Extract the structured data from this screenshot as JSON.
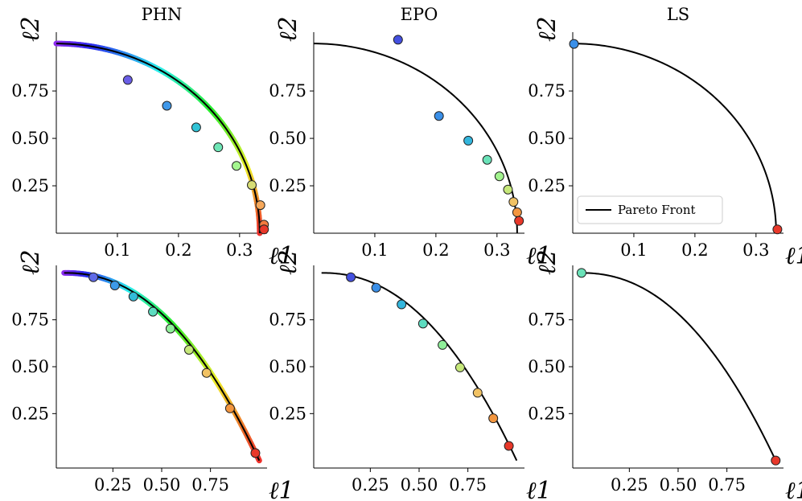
{
  "chart_data": [
    {
      "type": "line",
      "title": "PHN",
      "xlabel": "ℓ1",
      "ylabel": "ℓ2",
      "xticks": [
        "0.1",
        "0.2",
        "0.3"
      ],
      "yticks": [
        "0.25",
        "0.50",
        "0.75"
      ],
      "xlim": [
        0,
        0.345
      ],
      "ylim": [
        0,
        1.06
      ],
      "pareto_front": {
        "shape": "circle",
        "radius": 0.333
      },
      "rainbow_band": true,
      "points": [
        {
          "x": 0.117,
          "y": 0.808,
          "color": "#6a5ee6"
        },
        {
          "x": 0.181,
          "y": 0.672,
          "color": "#3f98ea"
        },
        {
          "x": 0.229,
          "y": 0.558,
          "color": "#30c3d6"
        },
        {
          "x": 0.265,
          "y": 0.453,
          "color": "#6fe6b6"
        },
        {
          "x": 0.295,
          "y": 0.355,
          "color": "#a4f68f"
        },
        {
          "x": 0.32,
          "y": 0.254,
          "color": "#d7dd75"
        },
        {
          "x": 0.334,
          "y": 0.148,
          "color": "#f6a85a"
        },
        {
          "x": 0.34,
          "y": 0.045,
          "color": "#f47b3f"
        },
        {
          "x": 0.34,
          "y": 0.02,
          "color": "#e8382a"
        }
      ]
    },
    {
      "type": "line",
      "title": "EPO",
      "xlabel": "ℓ1",
      "ylabel": "ℓ2",
      "xticks": [
        "0.1",
        "0.2",
        "0.3"
      ],
      "yticks": [
        "0.25",
        "0.50",
        "0.75"
      ],
      "xlim": [
        0,
        0.345
      ],
      "ylim": [
        0,
        1.06
      ],
      "pareto_front": {
        "shape": "circle",
        "radius": 0.333
      },
      "rainbow_band": false,
      "points": [
        {
          "x": 0.138,
          "y": 1.02,
          "color": "#4450e0"
        },
        {
          "x": 0.205,
          "y": 0.618,
          "color": "#3a8fe8"
        },
        {
          "x": 0.253,
          "y": 0.488,
          "color": "#33b6dd"
        },
        {
          "x": 0.284,
          "y": 0.387,
          "color": "#6ae2b8"
        },
        {
          "x": 0.304,
          "y": 0.3,
          "color": "#a2f48e"
        },
        {
          "x": 0.318,
          "y": 0.23,
          "color": "#c6e87a"
        },
        {
          "x": 0.327,
          "y": 0.165,
          "color": "#f1c264"
        },
        {
          "x": 0.333,
          "y": 0.11,
          "color": "#f3963f"
        },
        {
          "x": 0.336,
          "y": 0.065,
          "color": "#e8382a"
        }
      ]
    },
    {
      "type": "line",
      "title": "LS",
      "xlabel": "ℓ1",
      "ylabel": "ℓ2",
      "xticks": [
        "0.1",
        "0.2",
        "0.3"
      ],
      "yticks": [
        "0.25",
        "0.50",
        "0.75"
      ],
      "xlim": [
        0,
        0.345
      ],
      "ylim": [
        0,
        1.06
      ],
      "pareto_front": {
        "shape": "circle",
        "radius": 0.333
      },
      "rainbow_band": false,
      "legend": {
        "label": "Pareto Front",
        "placement": "lower-left"
      },
      "points": [
        {
          "x": 0.002,
          "y": 0.998,
          "color": "#3a8fe8"
        },
        {
          "x": 0.335,
          "y": 0.02,
          "color": "#e8382a"
        }
      ]
    },
    {
      "type": "line",
      "title": "",
      "xlabel": "ℓ1",
      "ylabel": "ℓ2",
      "xticks": [
        "0.25",
        "0.50",
        "0.75"
      ],
      "yticks": [
        "0.25",
        "0.50",
        "0.75"
      ],
      "xlim": [
        -0.04,
        1.04
      ],
      "ylim": [
        -0.04,
        1.04
      ],
      "pareto_front": {
        "shape": "concave"
      },
      "rainbow_band": true,
      "points": [
        {
          "x": 0.15,
          "y": 0.977,
          "color": "#5f6ae8"
        },
        {
          "x": 0.26,
          "y": 0.933,
          "color": "#3c9ae8"
        },
        {
          "x": 0.355,
          "y": 0.874,
          "color": "#32bcd8"
        },
        {
          "x": 0.455,
          "y": 0.793,
          "color": "#5ddcc0"
        },
        {
          "x": 0.545,
          "y": 0.703,
          "color": "#90f09a"
        },
        {
          "x": 0.64,
          "y": 0.59,
          "color": "#c6e87a"
        },
        {
          "x": 0.73,
          "y": 0.467,
          "color": "#f1c264"
        },
        {
          "x": 0.85,
          "y": 0.278,
          "color": "#f3963f"
        },
        {
          "x": 0.98,
          "y": 0.04,
          "color": "#e8382a"
        }
      ]
    },
    {
      "type": "line",
      "title": "",
      "xlabel": "ℓ1",
      "ylabel": "ℓ2",
      "xticks": [
        "0.25",
        "0.50",
        "0.75"
      ],
      "yticks": [
        "0.25",
        "0.50",
        "0.75"
      ],
      "xlim": [
        -0.04,
        1.04
      ],
      "ylim": [
        -0.04,
        1.04
      ],
      "pareto_front": {
        "shape": "concave"
      },
      "rainbow_band": false,
      "points": [
        {
          "x": 0.15,
          "y": 0.977,
          "color": "#4450e0"
        },
        {
          "x": 0.28,
          "y": 0.921,
          "color": "#3a8fe8"
        },
        {
          "x": 0.41,
          "y": 0.832,
          "color": "#33b6dd"
        },
        {
          "x": 0.52,
          "y": 0.73,
          "color": "#5ddcc0"
        },
        {
          "x": 0.62,
          "y": 0.616,
          "color": "#90f09a"
        },
        {
          "x": 0.71,
          "y": 0.496,
          "color": "#c6e87a"
        },
        {
          "x": 0.8,
          "y": 0.361,
          "color": "#f1c264"
        },
        {
          "x": 0.88,
          "y": 0.225,
          "color": "#f3963f"
        },
        {
          "x": 0.96,
          "y": 0.078,
          "color": "#e8382a"
        }
      ]
    },
    {
      "type": "line",
      "title": "",
      "xlabel": "ℓ1",
      "ylabel": "ℓ2",
      "xticks": [
        "0.25",
        "0.50",
        "0.75"
      ],
      "yticks": [
        "0.25",
        "0.50",
        "0.75"
      ],
      "xlim": [
        -0.04,
        1.04
      ],
      "ylim": [
        -0.04,
        1.04
      ],
      "pareto_front": {
        "shape": "concave"
      },
      "rainbow_band": false,
      "points": [
        {
          "x": 0.005,
          "y": 1.0,
          "color": "#6ae2b8"
        },
        {
          "x": 1.0,
          "y": 0.0,
          "color": "#e8382a"
        }
      ]
    }
  ]
}
